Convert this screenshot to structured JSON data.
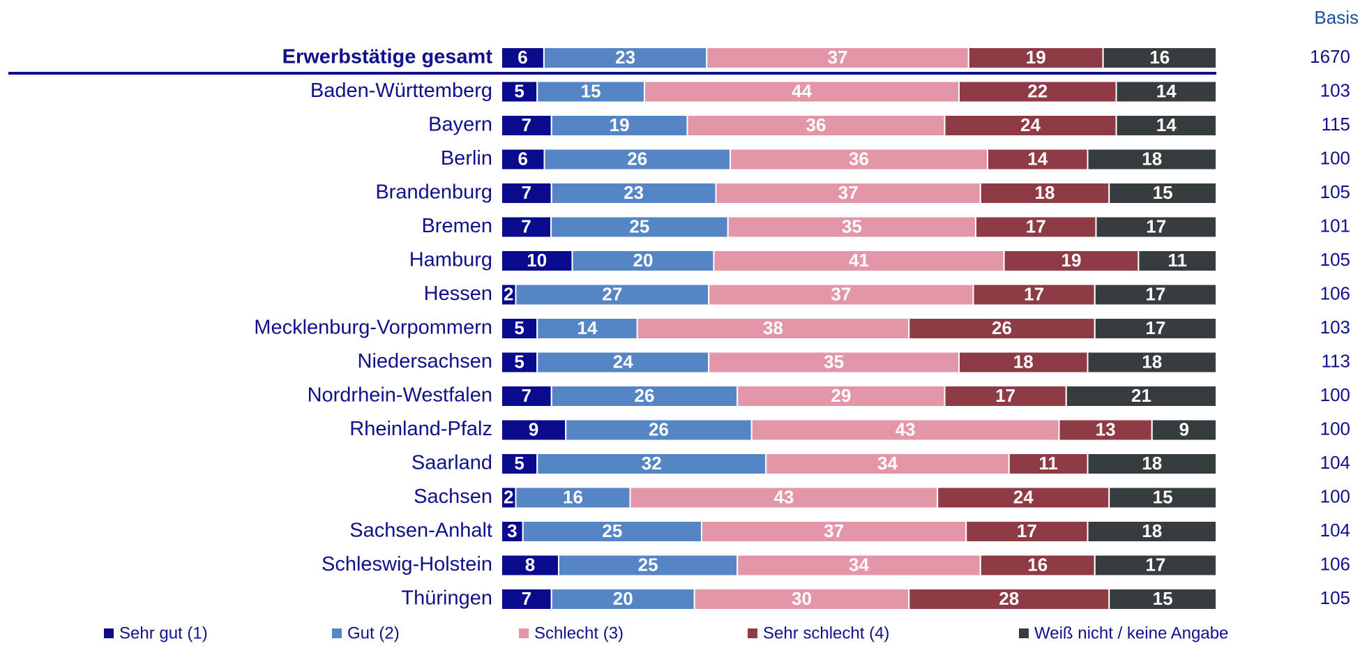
{
  "chart_data": {
    "type": "bar",
    "orientation": "horizontal",
    "stacked": true,
    "categories": [
      "Erwerbstätige gesamt",
      "Baden-Württemberg",
      "Bayern",
      "Berlin",
      "Brandenburg",
      "Bremen",
      "Hamburg",
      "Hessen",
      "Mecklenburg-Vorpommern",
      "Niedersachsen",
      "Nordrhein-Westfalen",
      "Rheinland-Pfalz",
      "Saarland",
      "Sachsen",
      "Sachsen-Anhalt",
      "Schleswig-Holstein",
      "Thüringen"
    ],
    "series": [
      {
        "name": "Sehr gut (1)",
        "color": "#0b0b8e",
        "values": [
          6,
          5,
          7,
          6,
          7,
          7,
          10,
          2,
          5,
          5,
          7,
          9,
          5,
          2,
          3,
          8,
          7
        ]
      },
      {
        "name": "Gut (2)",
        "color": "#5585c4",
        "values": [
          23,
          15,
          19,
          26,
          23,
          25,
          20,
          27,
          14,
          24,
          26,
          26,
          32,
          16,
          25,
          25,
          20
        ]
      },
      {
        "name": "Schlecht (3)",
        "color": "#e396a8",
        "values": [
          37,
          44,
          36,
          36,
          37,
          35,
          41,
          37,
          38,
          35,
          29,
          43,
          34,
          43,
          37,
          34,
          30
        ]
      },
      {
        "name": "Sehr schlecht (4)",
        "color": "#8e3b45",
        "values": [
          19,
          22,
          24,
          14,
          18,
          17,
          19,
          17,
          26,
          18,
          17,
          13,
          11,
          24,
          17,
          16,
          28
        ]
      },
      {
        "name": "Weiß nicht / keine Angabe",
        "color": "#373c3e",
        "values": [
          16,
          14,
          14,
          18,
          15,
          17,
          11,
          17,
          17,
          18,
          21,
          9,
          18,
          15,
          18,
          17,
          15
        ]
      }
    ],
    "basis": {
      "title": "Basis",
      "values": [
        1670,
        103,
        115,
        100,
        105,
        101,
        105,
        106,
        103,
        113,
        100,
        100,
        104,
        100,
        104,
        106,
        105
      ]
    }
  }
}
